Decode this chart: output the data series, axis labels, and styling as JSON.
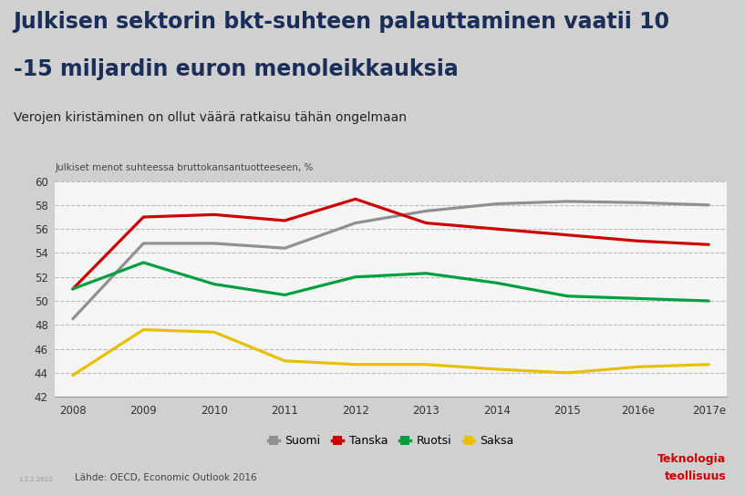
{
  "title_line1": "Julkisen sektorin bkt-suhteen palauttaminen vaatii 10",
  "title_line2": "-15 miljardin euron menoleikkauksia",
  "subtitle": "Verojen kiristäminen on ollut väärä ratkaisu tähän ongelmaan",
  "ylabel": "Julkiset menot suhteessa bruttokansantuotteeseen, %",
  "source": "Lähde: OECD, Economic Outlook 2016",
  "x_labels": [
    "2008",
    "2009",
    "2010",
    "2011",
    "2012",
    "2013",
    "2014",
    "2015",
    "2016e",
    "2017e"
  ],
  "ylim": [
    42,
    60
  ],
  "yticks": [
    42,
    44,
    46,
    48,
    50,
    52,
    54,
    56,
    58,
    60
  ],
  "series": {
    "Suomi": {
      "color": "#909090",
      "values": [
        48.5,
        54.8,
        54.8,
        54.4,
        56.5,
        57.5,
        58.1,
        58.3,
        58.2,
        58.0
      ]
    },
    "Tanska": {
      "color": "#CC0000",
      "values": [
        51.0,
        57.0,
        57.2,
        56.7,
        58.5,
        56.5,
        56.0,
        55.5,
        55.0,
        54.7
      ]
    },
    "Ruotsi": {
      "color": "#00A040",
      "values": [
        51.0,
        53.2,
        51.4,
        50.5,
        52.0,
        52.3,
        51.5,
        50.4,
        50.2,
        50.0
      ]
    },
    "Saksa": {
      "color": "#E8C000",
      "values": [
        43.8,
        47.6,
        47.4,
        45.0,
        44.7,
        44.7,
        44.3,
        44.0,
        44.5,
        44.7
      ]
    }
  },
  "outer_bg": "#d0d0d0",
  "header_bg": "#ffffff",
  "chart_bg": "#ffffff",
  "inner_chart_bg": "#f5f5f5",
  "title_color": "#1a2e5a",
  "grid_color": "#bbbbbb",
  "logo_text1": "Teknologia",
  "logo_text2": "teollisuus",
  "logo_color": "#cc0000",
  "date_text": "1.2.2.2022",
  "legend_square_size": 10
}
